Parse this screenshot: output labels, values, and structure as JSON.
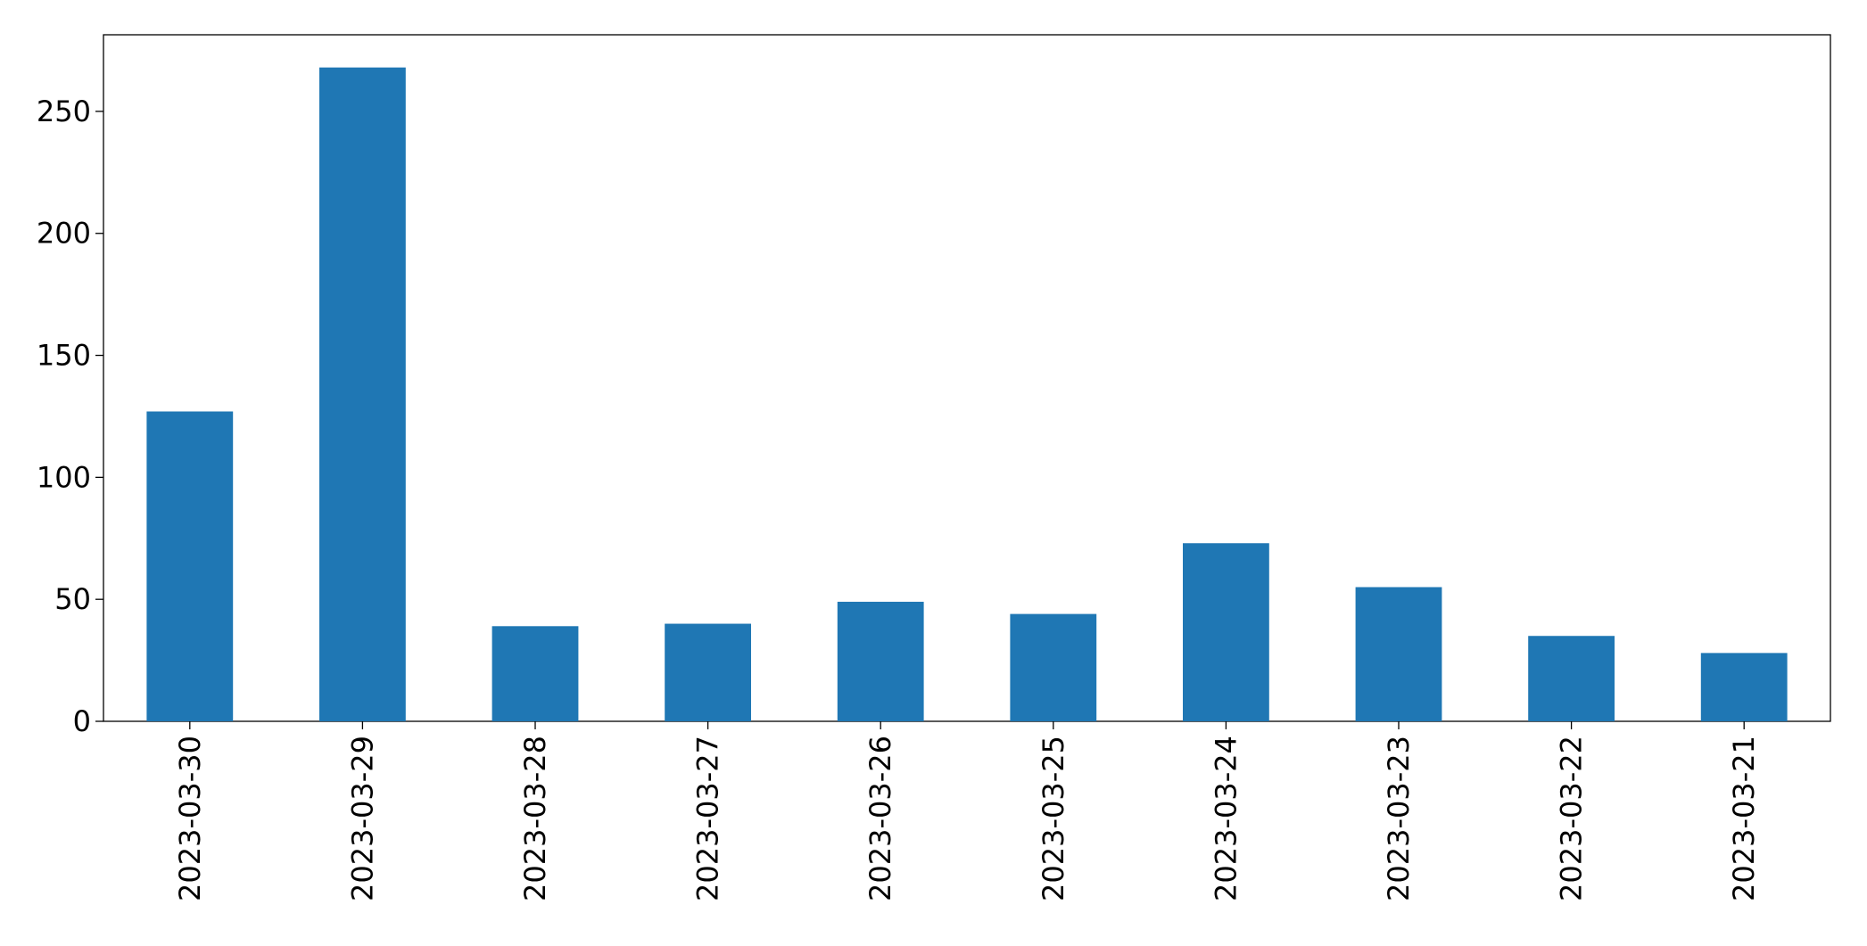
{
  "chart_data": {
    "type": "bar",
    "categories": [
      "2023-03-30",
      "2023-03-29",
      "2023-03-28",
      "2023-03-27",
      "2023-03-26",
      "2023-03-25",
      "2023-03-24",
      "2023-03-23",
      "2023-03-22",
      "2023-03-21"
    ],
    "values": [
      127,
      268,
      39,
      40,
      49,
      44,
      73,
      55,
      35,
      28
    ],
    "color": "#1f77b4",
    "ylim": [
      0,
      281.4
    ],
    "yticks": [
      0,
      50,
      100,
      150,
      200,
      250
    ],
    "grid": false
  }
}
